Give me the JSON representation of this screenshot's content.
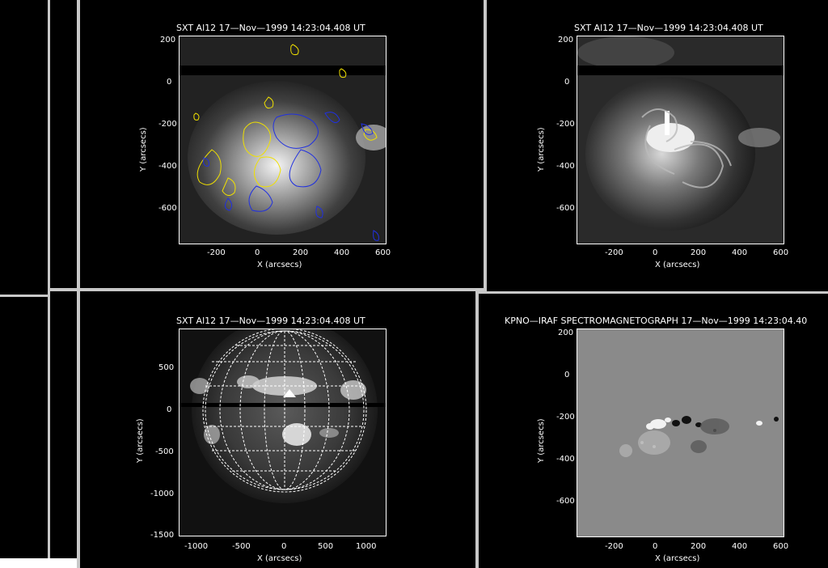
{
  "panels": [
    {
      "id": "p1",
      "title": "SXT Al12 17—Nov—1999 14:23:04.408 UT",
      "xlabel": "X (arcsecs)",
      "ylabel": "Y (arcsecs)",
      "xticks": [
        "-200",
        "0",
        "200",
        "400",
        "600"
      ],
      "yticks": [
        "200",
        "0",
        "-200",
        "-400",
        "-600"
      ],
      "overlay": "magnetic contours (yellow/blue)"
    },
    {
      "id": "p2",
      "title": "SXT Al12 17—Nov—1999 14:23:04.408 UT",
      "xlabel": "X (arcsecs)",
      "ylabel": "Y (arcsecs)",
      "xticks": [
        "-200",
        "0",
        "200",
        "400",
        "600"
      ],
      "yticks": [
        "200",
        "0",
        "-200",
        "-400",
        "-600"
      ]
    },
    {
      "id": "p3",
      "title": "SXT Al12 17—Nov—1999 14:23:04.408 UT",
      "xlabel": "X (arcsecs)",
      "ylabel": "Y (arcsecs)",
      "xticks": [
        "-1000",
        "-500",
        "0",
        "500",
        "1000"
      ],
      "yticks": [
        "500",
        "0",
        "-500",
        "-1000",
        "-1500"
      ]
    },
    {
      "id": "p4",
      "title": "KPNO—IRAF SPECTROMAGNETOGRAPH 17—Nov—1999 14:23:04.40",
      "xlabel": "X (arcsecs)",
      "ylabel": "Y (arcsecs)",
      "xticks": [
        "-200",
        "0",
        "200",
        "400",
        "600"
      ],
      "yticks": [
        "200",
        "0",
        "-200",
        "-400",
        "-600"
      ]
    }
  ],
  "colors": {
    "frame": "#c8c8c8",
    "contour_positive": "#f0e000",
    "contour_negative": "#2030e0",
    "magnetogram_bg": "#8a8a8a"
  }
}
